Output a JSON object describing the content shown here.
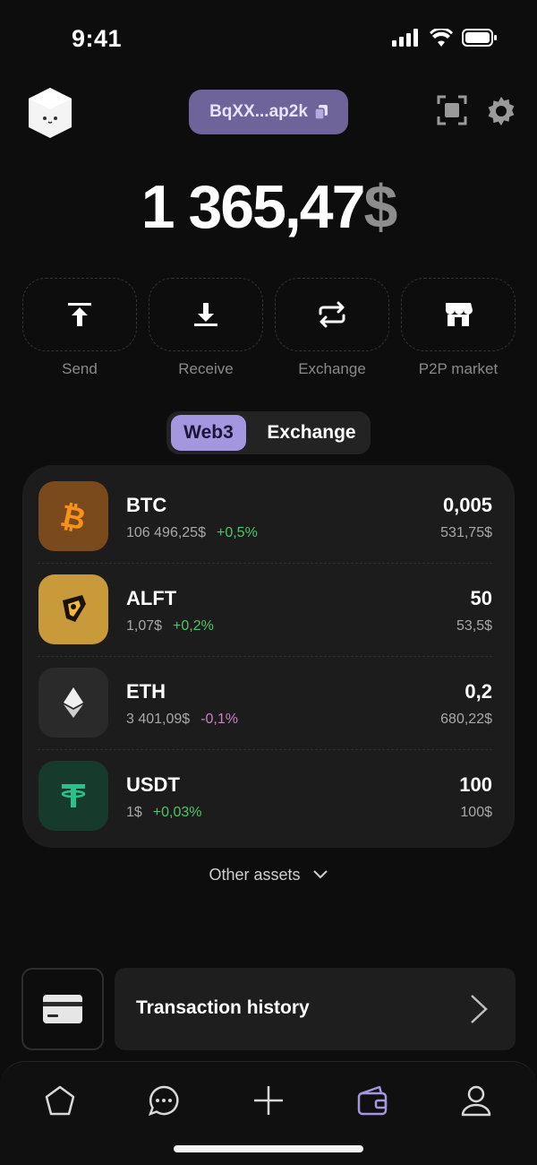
{
  "status_bar": {
    "time": "9:41"
  },
  "header": {
    "address": "BqXX...ap2k"
  },
  "balance": {
    "amount": "1 365,47",
    "currency": "$"
  },
  "actions": [
    {
      "label": "Send",
      "icon": "send-icon"
    },
    {
      "label": "Receive",
      "icon": "receive-icon"
    },
    {
      "label": "Exchange",
      "icon": "exchange-icon"
    },
    {
      "label": "P2P market",
      "icon": "market-icon"
    }
  ],
  "toggle": {
    "active": "Web3",
    "inactive": "Exchange"
  },
  "assets": [
    {
      "name": "BTC",
      "price": "106 496,25$",
      "change": "+0,5%",
      "amount": "0,005",
      "value": "531,75$",
      "icon": "bitcoin-icon",
      "color": "#7a4a1c"
    },
    {
      "name": "ALFT",
      "price": "1,07$",
      "change": "+0,2%",
      "amount": "50",
      "value": "53,5$",
      "icon": "alft-icon",
      "color": "#c89a3a"
    },
    {
      "name": "ETH",
      "price": "3 401,09$",
      "change": "-0,1%",
      "amount": "0,2",
      "value": "680,22$",
      "icon": "ethereum-icon",
      "color": "#2a2a2a"
    },
    {
      "name": "USDT",
      "price": "1$",
      "change": "+0,03%",
      "amount": "100",
      "value": "100$",
      "icon": "tether-icon",
      "color": "#163a2c"
    }
  ],
  "other_assets": "Other assets",
  "history": {
    "label": "Transaction history"
  },
  "tabs": [
    "home-icon",
    "chat-icon",
    "plus-icon",
    "wallet-icon",
    "profile-icon"
  ],
  "colors": {
    "accent": "#a596e0",
    "positive": "#4fc56a",
    "negative": "#c783c4"
  }
}
